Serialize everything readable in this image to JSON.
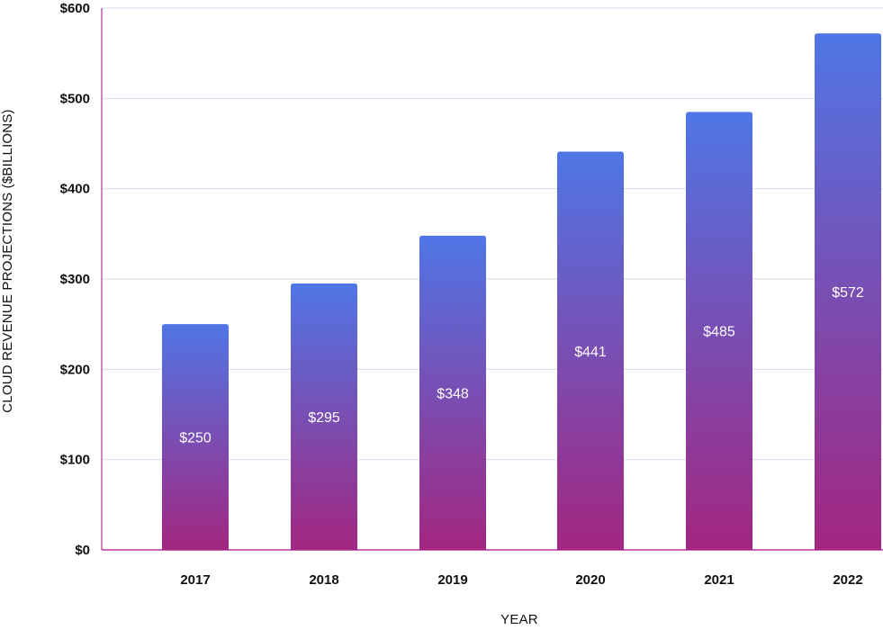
{
  "chart_data": {
    "type": "bar",
    "title": "",
    "xlabel": "YEAR",
    "ylabel": "CLOUD REVENUE PROJECTIONS ($BILLIONS)",
    "categories": [
      "2017",
      "2018",
      "2019",
      "2020",
      "2021",
      "2022"
    ],
    "values": [
      250,
      295,
      348,
      441,
      485,
      572
    ],
    "value_labels": [
      "$250",
      "$295",
      "$348",
      "$441",
      "$485",
      "$572"
    ],
    "ylim": [
      0,
      600
    ],
    "yticks": [
      0,
      100,
      200,
      300,
      400,
      500,
      600
    ],
    "ytick_labels": [
      "$0",
      "$100",
      "$200",
      "$300",
      "$400",
      "$500",
      "$600"
    ],
    "grid": true,
    "legend": "none"
  },
  "colors": {
    "bar_top": "#4f76e6",
    "bar_bottom": "#a32680",
    "gridline": "#d9d8ef",
    "axis": "#b8379a",
    "text": "#111111",
    "value_label": "#ffffff"
  }
}
